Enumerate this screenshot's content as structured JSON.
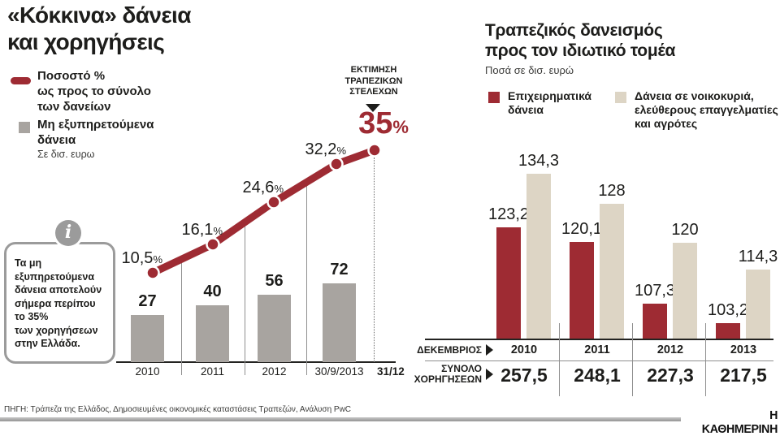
{
  "colors": {
    "accent_red": "#9e2b33",
    "bar_gray": "#a8a4a0",
    "beige": "#ddd5c5",
    "text": "#1d1d1b",
    "muted": "#3b3b39",
    "grid_gray": "#8f8f8f"
  },
  "left": {
    "title": "«Κόκκινα» δάνεια\nκαι χορηγήσεις",
    "legend_line_label": "Ποσοστό %\nως προς το σύνολο\nτων δανείων",
    "legend_bar_label": "Μη εξυπηρετούμενα\nδάνεια",
    "legend_bar_sublabel": "Σε δισ. ευρω",
    "info_icon": "i",
    "info_text": "Τα μη\nεξυπηρετούμενα\nδάνεια αποτελούν\nσήμερα περίπου\nτο 35%\nτων χορηγήσεων\nστην Ελλάδα.",
    "annotation_label": "ΕΚΤΙΜΗΣΗ\nΤΡΑΠΕΖΙΚΩΝ\nΣΤΕΛΕΧΩΝ",
    "annotation_value": "35",
    "annotation_pct": "%"
  },
  "right": {
    "title": "Τραπεζικός δανεισμός\nπρος τον ιδιωτικό τομέα",
    "subtitle": "Ποσά σε δισ. ευρώ",
    "legend": [
      {
        "label": "Επιχειρηματικά\nδάνεια",
        "color": "#9e2b33"
      },
      {
        "label": "Δάνεια σε νοικοκυριά,\nελεύθερους επαγγελματίες\nκαι αγρότες",
        "color": "#ddd5c5"
      }
    ],
    "row_month_label": "ΔΕΚΕΜΒΡΙΟΣ",
    "row_total_label": "ΣΥΝΟΛΟ\nΧΟΡΗΓΗΣΕΩΝ"
  },
  "footer": {
    "source": "ΠΗΓΗ: Τράπεζα της Ελλάδος, Δημοσιευμένες οικονομικές καταστάσεις Τραπεζών, Ανάλυση PwC",
    "logo": "Η ΚΑΘΗΜΕΡΙΝΗ"
  },
  "chart_data": [
    {
      "id": "red-loans-chart",
      "type": "bar",
      "title": "«Κόκκινα» δάνεια και χορηγήσεις",
      "categories": [
        "2010",
        "2011",
        "2012",
        "30/9/2013",
        "31/12"
      ],
      "bars": {
        "name": "Μη εξυπηρετούμενα δάνεια (σε δισ. ευρω)",
        "values": [
          27,
          40,
          56,
          72
        ],
        "labels": [
          "27",
          "40",
          "56",
          "72"
        ],
        "color": "#a8a4a0"
      },
      "line": {
        "name": "Ποσοστό % ως προς το σύνολο των δανείων",
        "values": [
          10.5,
          16.1,
          24.6,
          32.2,
          35
        ],
        "labels": [
          "10,5%",
          "16,1%",
          "24,6%",
          "32,2%",
          "35%"
        ],
        "color": "#9e2b33",
        "last_point_note": "ΕΚΤΙΜΗΣΗ ΤΡΑΠΕΖΙΚΩΝ ΣΤΕΛΕΧΩΝ"
      },
      "legend_position": "top-left",
      "grid": false
    },
    {
      "id": "bank-lending-chart",
      "type": "bar",
      "title": "Τραπεζικός δανεισμός προς τον ιδιωτικό τομέα",
      "units": "δισ. ευρώ",
      "categories": [
        "2010",
        "2011",
        "2012",
        "2013"
      ],
      "x_axis_note": "ΔΕΚΕΜΒΡΙΟΣ",
      "baseline_value": 100,
      "series": [
        {
          "name": "Επιχειρηματικά δάνεια",
          "color": "#9e2b33",
          "values": [
            123.2,
            120.1,
            107.3,
            103.2
          ],
          "labels": [
            "123,2",
            "120,1",
            "107,3",
            "103,2"
          ]
        },
        {
          "name": "Δάνεια σε νοικοκυριά, ελεύθερους επαγγελματίες και αγρότες",
          "color": "#ddd5c5",
          "values": [
            134.3,
            128,
            120,
            114.3
          ],
          "labels": [
            "134,3",
            "128",
            "120",
            "114,3"
          ]
        }
      ],
      "totals": {
        "label": "ΣΥΝΟΛΟ ΧΟΡΗΓΗΣΕΩΝ",
        "values": [
          "257,5",
          "248,1",
          "227,3",
          "217,5"
        ]
      },
      "legend_position": "top"
    }
  ]
}
